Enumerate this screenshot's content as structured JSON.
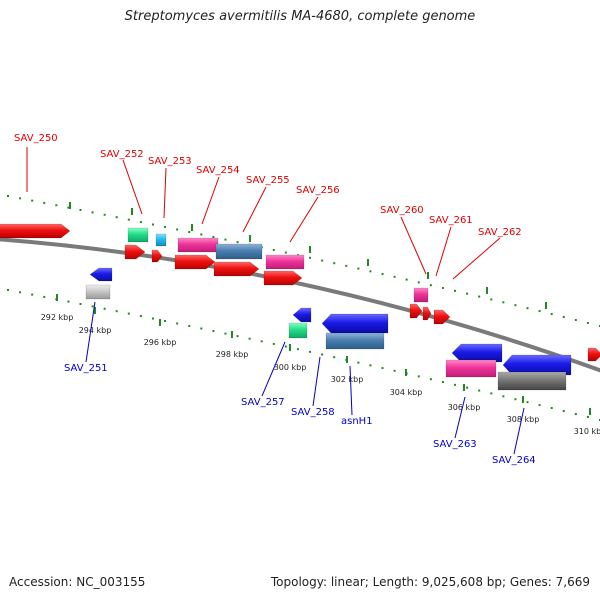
{
  "title": "Streptomyces avermitilis MA-4680, complete genome",
  "footer": {
    "accession": "Accession: NC_003155",
    "stats": "Topology: linear; Length: 9,025,608 bp; Genes: 7,669"
  },
  "ruler": {
    "unit": "kbp",
    "ticks": [
      "292 kbp",
      "294 kbp",
      "296 kbp",
      "298 kbp",
      "300 kbp",
      "302 kbp",
      "304 kbp",
      "306 kbp",
      "308 kbp",
      "310 kbp"
    ]
  },
  "genes_top": [
    "SAV_250",
    "SAV_252",
    "SAV_253",
    "SAV_254",
    "SAV_255",
    "SAV_256",
    "SAV_260",
    "SAV_261",
    "SAV_262"
  ],
  "genes_bottom": [
    "SAV_251",
    "SAV_257",
    "SAV_258",
    "asnH1",
    "SAV_263",
    "SAV_264"
  ],
  "colors": {
    "red": "#ee1111",
    "blue": "#1a1ae8",
    "pink": "#ee3399",
    "steel": "#4a7fb0",
    "green": "#22dd88",
    "cyan": "#22bbee",
    "gray": "#777777",
    "lightgray": "#c8c8c8",
    "tick": "#228822"
  }
}
